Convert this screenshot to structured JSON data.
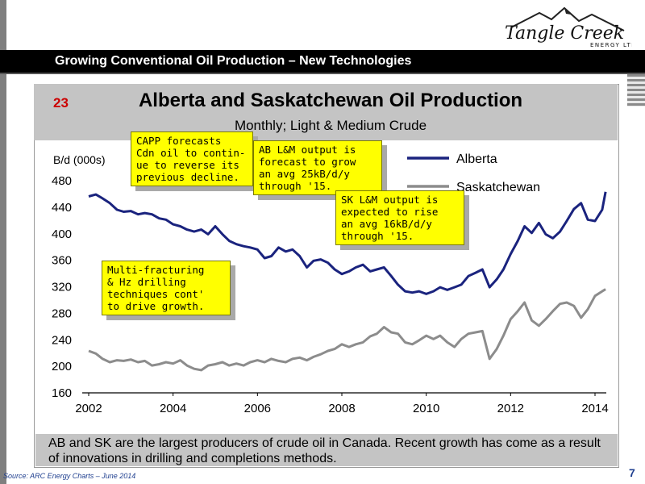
{
  "logo": {
    "name": "Tangle Creek",
    "sub": "ENERGY LTD."
  },
  "slide": {
    "title": "Growing Conventional Oil Production – New Technologies",
    "page_number": "7"
  },
  "chart_data": {
    "type": "line",
    "number": "23",
    "title": "Alberta and Saskatchewan Oil Production",
    "subtitle": "Monthly; Light & Medium Crude",
    "ylabel": "B/d (000s)",
    "xlabel": "",
    "ylim": [
      160,
      480
    ],
    "yticks": [
      160,
      200,
      240,
      280,
      320,
      360,
      400,
      440,
      480
    ],
    "xlim": [
      2002,
      2014.3
    ],
    "xticks": [
      2002,
      2004,
      2006,
      2008,
      2010,
      2012,
      2014
    ],
    "legend_position": "top-right",
    "grid": false,
    "series": [
      {
        "name": "Alberta",
        "color": "#1a237e",
        "points": [
          [
            2002.0,
            455
          ],
          [
            2002.17,
            458
          ],
          [
            2002.33,
            452
          ],
          [
            2002.5,
            445
          ],
          [
            2002.67,
            435
          ],
          [
            2002.83,
            432
          ],
          [
            2003.0,
            433
          ],
          [
            2003.17,
            428
          ],
          [
            2003.33,
            430
          ],
          [
            2003.5,
            428
          ],
          [
            2003.67,
            422
          ],
          [
            2003.83,
            420
          ],
          [
            2004.0,
            413
          ],
          [
            2004.17,
            410
          ],
          [
            2004.33,
            405
          ],
          [
            2004.5,
            402
          ],
          [
            2004.67,
            405
          ],
          [
            2004.83,
            398
          ],
          [
            2005.0,
            410
          ],
          [
            2005.17,
            398
          ],
          [
            2005.33,
            388
          ],
          [
            2005.5,
            383
          ],
          [
            2005.67,
            380
          ],
          [
            2005.83,
            378
          ],
          [
            2006.0,
            375
          ],
          [
            2006.17,
            362
          ],
          [
            2006.33,
            365
          ],
          [
            2006.5,
            378
          ],
          [
            2006.67,
            372
          ],
          [
            2006.83,
            375
          ],
          [
            2007.0,
            365
          ],
          [
            2007.17,
            348
          ],
          [
            2007.33,
            358
          ],
          [
            2007.5,
            360
          ],
          [
            2007.67,
            355
          ],
          [
            2007.83,
            345
          ],
          [
            2008.0,
            338
          ],
          [
            2008.17,
            342
          ],
          [
            2008.33,
            348
          ],
          [
            2008.5,
            352
          ],
          [
            2008.67,
            342
          ],
          [
            2008.83,
            345
          ],
          [
            2009.0,
            348
          ],
          [
            2009.17,
            335
          ],
          [
            2009.33,
            322
          ],
          [
            2009.5,
            312
          ],
          [
            2009.67,
            310
          ],
          [
            2009.83,
            312
          ],
          [
            2010.0,
            308
          ],
          [
            2010.17,
            312
          ],
          [
            2010.33,
            318
          ],
          [
            2010.5,
            314
          ],
          [
            2010.67,
            318
          ],
          [
            2010.83,
            322
          ],
          [
            2011.0,
            335
          ],
          [
            2011.17,
            340
          ],
          [
            2011.33,
            345
          ],
          [
            2011.5,
            318
          ],
          [
            2011.67,
            330
          ],
          [
            2011.83,
            345
          ],
          [
            2012.0,
            368
          ],
          [
            2012.17,
            388
          ],
          [
            2012.33,
            410
          ],
          [
            2012.5,
            400
          ],
          [
            2012.67,
            415
          ],
          [
            2012.83,
            398
          ],
          [
            2013.0,
            392
          ],
          [
            2013.17,
            402
          ],
          [
            2013.33,
            418
          ],
          [
            2013.5,
            436
          ],
          [
            2013.67,
            445
          ],
          [
            2013.83,
            420
          ],
          [
            2014.0,
            418
          ],
          [
            2014.17,
            435
          ],
          [
            2014.25,
            462
          ]
        ]
      },
      {
        "name": "Saskatchewan",
        "color": "#8c8c8c",
        "points": [
          [
            2002.0,
            222
          ],
          [
            2002.17,
            218
          ],
          [
            2002.33,
            210
          ],
          [
            2002.5,
            205
          ],
          [
            2002.67,
            208
          ],
          [
            2002.83,
            207
          ],
          [
            2003.0,
            209
          ],
          [
            2003.17,
            205
          ],
          [
            2003.33,
            207
          ],
          [
            2003.5,
            200
          ],
          [
            2003.67,
            202
          ],
          [
            2003.83,
            205
          ],
          [
            2004.0,
            203
          ],
          [
            2004.17,
            208
          ],
          [
            2004.33,
            200
          ],
          [
            2004.5,
            195
          ],
          [
            2004.67,
            193
          ],
          [
            2004.83,
            200
          ],
          [
            2005.0,
            202
          ],
          [
            2005.17,
            205
          ],
          [
            2005.33,
            200
          ],
          [
            2005.5,
            203
          ],
          [
            2005.67,
            200
          ],
          [
            2005.83,
            205
          ],
          [
            2006.0,
            208
          ],
          [
            2006.17,
            205
          ],
          [
            2006.33,
            210
          ],
          [
            2006.5,
            207
          ],
          [
            2006.67,
            205
          ],
          [
            2006.83,
            210
          ],
          [
            2007.0,
            212
          ],
          [
            2007.17,
            208
          ],
          [
            2007.33,
            213
          ],
          [
            2007.5,
            217
          ],
          [
            2007.67,
            222
          ],
          [
            2007.83,
            225
          ],
          [
            2008.0,
            232
          ],
          [
            2008.17,
            228
          ],
          [
            2008.33,
            232
          ],
          [
            2008.5,
            235
          ],
          [
            2008.67,
            244
          ],
          [
            2008.83,
            248
          ],
          [
            2009.0,
            258
          ],
          [
            2009.17,
            250
          ],
          [
            2009.33,
            248
          ],
          [
            2009.5,
            235
          ],
          [
            2009.67,
            232
          ],
          [
            2009.83,
            238
          ],
          [
            2010.0,
            245
          ],
          [
            2010.17,
            240
          ],
          [
            2010.33,
            245
          ],
          [
            2010.5,
            235
          ],
          [
            2010.67,
            228
          ],
          [
            2010.83,
            240
          ],
          [
            2011.0,
            248
          ],
          [
            2011.17,
            250
          ],
          [
            2011.33,
            252
          ],
          [
            2011.5,
            210
          ],
          [
            2011.67,
            225
          ],
          [
            2011.83,
            245
          ],
          [
            2012.0,
            270
          ],
          [
            2012.17,
            282
          ],
          [
            2012.33,
            295
          ],
          [
            2012.5,
            268
          ],
          [
            2012.67,
            260
          ],
          [
            2012.83,
            270
          ],
          [
            2013.0,
            282
          ],
          [
            2013.17,
            293
          ],
          [
            2013.33,
            295
          ],
          [
            2013.5,
            290
          ],
          [
            2013.67,
            272
          ],
          [
            2013.83,
            285
          ],
          [
            2014.0,
            305
          ],
          [
            2014.17,
            312
          ],
          [
            2014.25,
            315
          ]
        ]
      }
    ]
  },
  "callouts": [
    {
      "id": "capp",
      "text": "CAPP forecasts\nCdn oil to contin-\nue to reverse its\nprevious decline."
    },
    {
      "id": "ab",
      "text": "AB L&M output is\nforecast to grow\nan avg 25kB/d/y\nthrough '15."
    },
    {
      "id": "sk",
      "text": "SK L&M output is\nexpected to rise\nan avg 16kB/d/y\nthrough '15."
    },
    {
      "id": "frac",
      "text": "Multi-fracturing\n& Hz drilling\ntechniques cont'\nto drive growth."
    }
  ],
  "summary": "AB and SK are the largest producers of crude oil in Canada. Recent growth has come as a result of innovations in drilling and completions methods.",
  "source": "Source: ARC Energy Charts – June 2014"
}
